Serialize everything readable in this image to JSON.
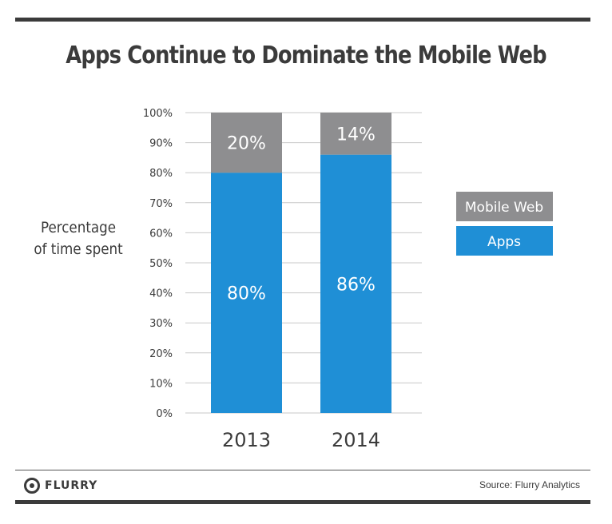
{
  "chart_data": {
    "type": "bar",
    "stacked": true,
    "title": "Apps Continue to Dominate the Mobile Web",
    "ylabel": [
      "Percentage",
      "of time spent"
    ],
    "categories": [
      "2013",
      "2014"
    ],
    "ylim": [
      0,
      100
    ],
    "yticks": [
      "0%",
      "10%",
      "20%",
      "30%",
      "40%",
      "50%",
      "60%",
      "70%",
      "80%",
      "90%",
      "100%"
    ],
    "grid": true,
    "legend_position": "right",
    "series": [
      {
        "name": "Apps",
        "values": [
          80,
          86
        ],
        "labels": [
          "80%",
          "86%"
        ],
        "color": "#1f8fd6"
      },
      {
        "name": "Mobile Web",
        "values": [
          20,
          14
        ],
        "labels": [
          "20%",
          "14%"
        ],
        "color": "#8e8e90"
      }
    ]
  },
  "legend": {
    "mobile_web": "Mobile Web",
    "apps": "Apps"
  },
  "footer": {
    "brand": "FLURRY",
    "source": "Source: Flurry Analytics"
  }
}
